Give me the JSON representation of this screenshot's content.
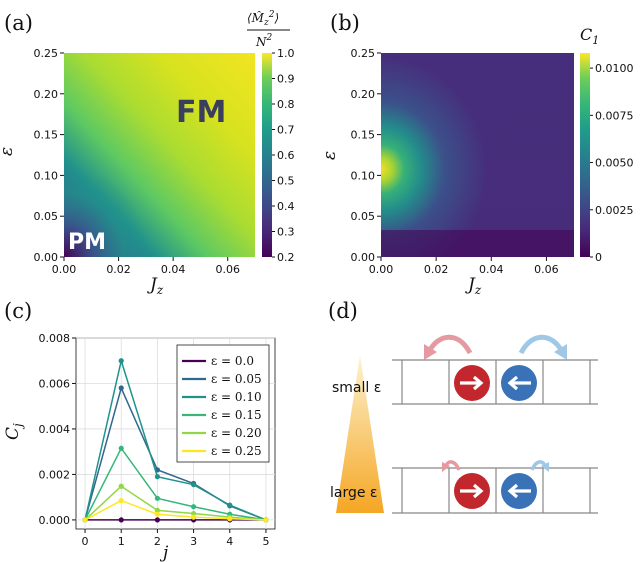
{
  "panels": {
    "a": "(a)",
    "b": "(b)",
    "c": "(c)",
    "d": "(d)"
  },
  "chart_data": [
    {
      "type": "heatmap",
      "panel": "a",
      "xlabel": "J_z",
      "ylabel": "ε",
      "xlim": [
        0.0,
        0.07
      ],
      "ylim": [
        0.0,
        0.25
      ],
      "xticks": [
        "0.00",
        "0.02",
        "0.04",
        "0.06"
      ],
      "yticks": [
        "0.00",
        "0.05",
        "0.10",
        "0.15",
        "0.20",
        "0.25"
      ],
      "colorbar_label": "⟨M̂z²⟩ / N²",
      "colorbar_range": [
        0.2,
        1.0
      ],
      "colorbar_ticks": [
        "0.2",
        "0.3",
        "0.4",
        "0.5",
        "0.6",
        "0.7",
        "0.8",
        "0.9",
        "1.0"
      ],
      "colormap": "viridis",
      "annotations": [
        "FM",
        "PM"
      ]
    },
    {
      "type": "heatmap",
      "panel": "b",
      "xlabel": "J_z",
      "ylabel": "ε",
      "xlim": [
        0.0,
        0.07
      ],
      "ylim": [
        0.0,
        0.25
      ],
      "xticks": [
        "0.00",
        "0.02",
        "0.04",
        "0.06"
      ],
      "yticks": [
        "0.00",
        "0.05",
        "0.10",
        "0.15",
        "0.20",
        "0.25"
      ],
      "colorbar_label": "C1",
      "colorbar_range": [
        0.0,
        0.0108
      ],
      "colorbar_ticks": [
        "0",
        "0.0025",
        "0.0050",
        "0.0075",
        "0.0100"
      ],
      "colormap": "viridis"
    },
    {
      "type": "line",
      "panel": "c",
      "xlabel": "j",
      "ylabel": "C_j",
      "x": [
        0,
        1,
        2,
        3,
        4,
        5
      ],
      "xlim": [
        -0.25,
        5.25
      ],
      "ylim": [
        -0.0004,
        0.008
      ],
      "xticks": [
        "0",
        "1",
        "2",
        "3",
        "4",
        "5"
      ],
      "yticks": [
        "0.000",
        "0.002",
        "0.004",
        "0.006",
        "0.008"
      ],
      "grid": true,
      "legend_position": "top-right",
      "series": [
        {
          "name": "ε = 0.0",
          "color": "#440154",
          "values": [
            0,
            0,
            0,
            0,
            0,
            0
          ]
        },
        {
          "name": "ε = 0.05",
          "color": "#31688e",
          "values": [
            0,
            0.0058,
            0.0022,
            0.0016,
            0.00062,
            0
          ]
        },
        {
          "name": "ε = 0.10",
          "color": "#21918c",
          "values": [
            0,
            0.007,
            0.0019,
            0.00155,
            0.00065,
            0
          ]
        },
        {
          "name": "ε = 0.15",
          "color": "#35b779",
          "values": [
            0,
            0.00315,
            0.00095,
            0.00058,
            0.00025,
            0
          ]
        },
        {
          "name": "ε = 0.20",
          "color": "#90d743",
          "values": [
            0,
            0.00148,
            0.00042,
            0.00028,
            0.00012,
            0
          ]
        },
        {
          "name": "ε = 0.25",
          "color": "#fde725",
          "values": [
            0,
            0.00085,
            0.00025,
            0.00012,
            5e-05,
            0
          ]
        }
      ]
    }
  ],
  "diagram": {
    "small_label": "small ε",
    "large_label": "large ε",
    "colors": {
      "up": "#c1272d",
      "down": "#3a72b8",
      "left_arrow": "#e59aa2",
      "right_arrow": "#9fc7e6",
      "gradient_top": "#fcf3d0",
      "gradient_bottom": "#f5a623"
    }
  }
}
